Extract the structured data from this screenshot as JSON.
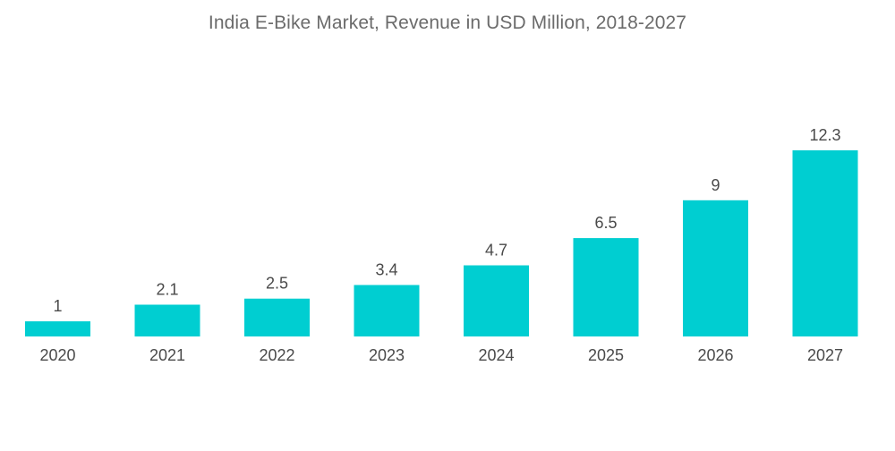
{
  "chart_data": {
    "type": "bar",
    "title": "India E-Bike Market, Revenue in USD Million,  2018-2027",
    "categories": [
      "2020",
      "2021",
      "2022",
      "2023",
      "2024",
      "2025",
      "2026",
      "2027"
    ],
    "values": [
      1,
      2.1,
      2.5,
      3.4,
      4.7,
      6.5,
      9,
      12.3
    ],
    "data_labels": [
      "1",
      "2.1",
      "2.5",
      "3.4",
      "4.7",
      "6.5",
      "9",
      "12.3"
    ],
    "xlabel": "",
    "ylabel": "",
    "ylim": [
      0,
      12.3
    ],
    "grid": false,
    "legend": "none",
    "bar_color": "#00ced1"
  }
}
